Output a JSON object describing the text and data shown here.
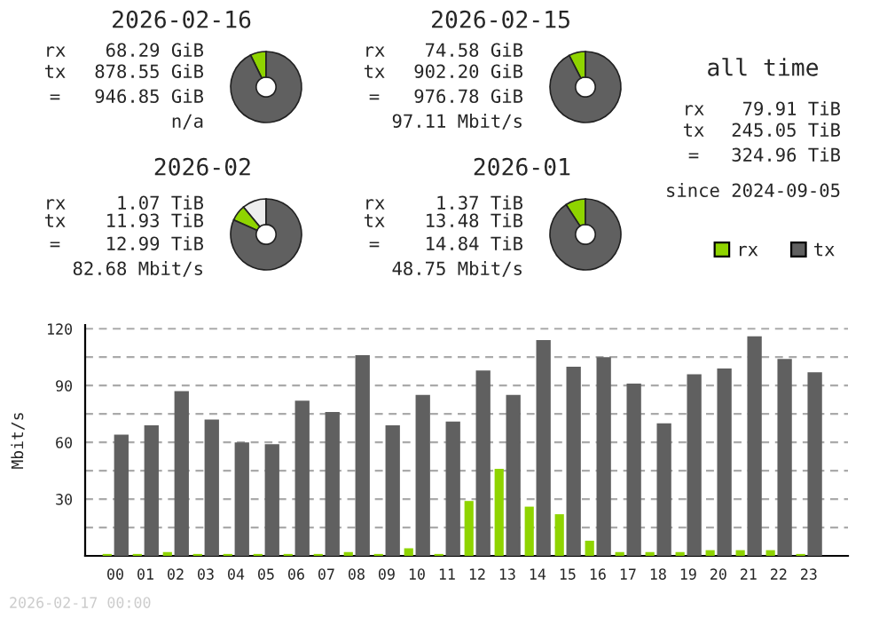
{
  "chart_data": [
    {
      "type": "donut",
      "title": "2026-02-16",
      "categories": [
        null,
        null
      ],
      "values": [
        7.2,
        92.8
      ],
      "colors": [
        "#8fd400",
        "#606060"
      ],
      "annotations": [
        "rx",
        "68.29 GiB",
        "tx",
        "878.55 GiB",
        "=",
        "946.85 GiB",
        "n/a"
      ]
    },
    {
      "type": "donut",
      "title": "2026-02-15",
      "categories": [
        null,
        null
      ],
      "values": [
        7.6,
        92.4
      ],
      "colors": [
        "#8fd400",
        "#606060"
      ],
      "annotations": [
        "rx",
        "74.58 GiB",
        "tx",
        "902.20 GiB",
        "=",
        "976.78 GiB",
        "97.11 Mbit/s"
      ]
    },
    {
      "type": "donut",
      "title": "2026-02",
      "categories": [
        null,
        null,
        null
      ],
      "values": [
        11,
        7.3,
        81.7
      ],
      "colors": [
        "#eeeeee",
        "#8fd400",
        "#606060"
      ],
      "annotations": [
        "rx",
        "1.07 TiB",
        "tx",
        "11.93 TiB",
        "=",
        "12.99 TiB",
        "82.68 Mbit/s"
      ]
    },
    {
      "type": "donut",
      "title": "2026-01",
      "categories": [
        null,
        null
      ],
      "values": [
        9.2,
        90.8
      ],
      "colors": [
        "#8fd400",
        "#606060"
      ],
      "annotations": [
        "rx",
        "1.37 TiB",
        "tx",
        "13.48 TiB",
        "=",
        "14.84 TiB",
        "48.75 Mbit/s"
      ]
    },
    {
      "type": "other",
      "title": "all time",
      "annotations": [
        "rx",
        "79.91 TiB",
        "tx",
        "245.05 TiB",
        "=",
        "324.96 TiB",
        "since 2024-09-05"
      ]
    },
    {
      "type": "bar",
      "ylabel": "Mbit/s",
      "categories": [
        "00",
        "01",
        "02",
        "03",
        "04",
        "05",
        "06",
        "07",
        "08",
        "09",
        "10",
        "11",
        "12",
        "13",
        "14",
        "15",
        "16",
        "17",
        "18",
        "19",
        "20",
        "21",
        "22",
        "23"
      ],
      "series": [
        {
          "name": "rx",
          "color": "#8fd400",
          "values": [
            1,
            1,
            2,
            1,
            1,
            1,
            1,
            1,
            2,
            1,
            4,
            1,
            29,
            46,
            26,
            22,
            8,
            2,
            2,
            2,
            3,
            3,
            3,
            1
          ]
        },
        {
          "name": "tx",
          "color": "#606060",
          "values": [
            64,
            69,
            87,
            72,
            60,
            59,
            82,
            76,
            106,
            69,
            85,
            71,
            98,
            85,
            114,
            100,
            105,
            91,
            70,
            96,
            99,
            116,
            104,
            97
          ]
        }
      ],
      "ylim": [
        0,
        122
      ],
      "yticks": [
        {
          "value": 0,
          "label": null
        },
        {
          "value": 15,
          "label": null
        },
        30,
        {
          "value": 45,
          "label": null
        },
        60,
        {
          "value": 75,
          "label": null
        },
        90,
        {
          "value": 105,
          "label": null
        },
        120
      ],
      "grid": "y",
      "legend": "top right",
      "annotations": [
        "2026-02-17 00:00"
      ]
    }
  ]
}
